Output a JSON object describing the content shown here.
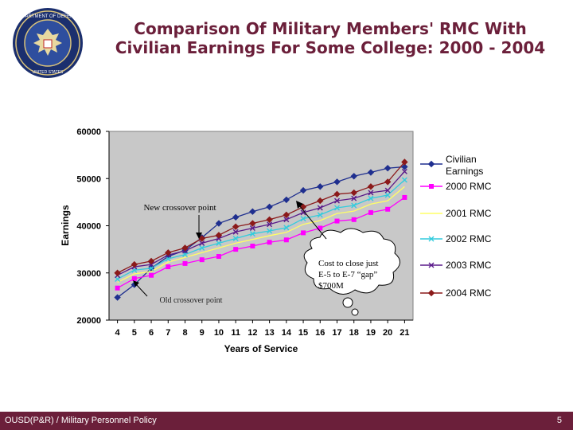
{
  "slide": {
    "title_line1": "Comparison Of Military Members' RMC With",
    "title_line2": "Civilian Earnings For Some College: 2000 - 2004",
    "footer_left": "OUSD(P&R) / Military Personnel Policy",
    "page_number": "5",
    "seal_lettering": "DEPARTMENT OF DEFENSE · UNITED STATES OF AMERICA"
  },
  "colors": {
    "title": "#6b1f3a",
    "footer_bg": "#6b1f3a",
    "plot_bg": "#c8c8c8",
    "civilian": "#1f2f8f",
    "rmc2000": "#ff00ff",
    "rmc2001": "#ffff66",
    "rmc2002": "#33ccdd",
    "rmc2003": "#5a1a8a",
    "rmc2004": "#8b1a1a"
  },
  "chart_data": {
    "type": "line",
    "title": "",
    "xlabel": "Years of Service",
    "ylabel": "Earnings",
    "x": [
      4,
      5,
      6,
      7,
      8,
      9,
      10,
      11,
      12,
      13,
      14,
      15,
      16,
      17,
      18,
      19,
      20,
      21
    ],
    "ylim": [
      20000,
      60000
    ],
    "yticks": [
      20000,
      30000,
      40000,
      50000,
      60000
    ],
    "ytick_labels": [
      "20000",
      "30000",
      "40000",
      "50000",
      "60000"
    ],
    "series": [
      {
        "name": "Civilian Earnings",
        "key": "civilian",
        "marker": "diamond",
        "values": [
          24800,
          27500,
          31000,
          33500,
          34800,
          37500,
          40500,
          41800,
          43000,
          44000,
          45500,
          47500,
          48300,
          49300,
          50500,
          51300,
          52200,
          52500
        ]
      },
      {
        "name": "2000 RMC",
        "key": "rmc2000",
        "marker": "square",
        "values": [
          26800,
          28800,
          29500,
          31300,
          32000,
          32800,
          33500,
          35000,
          35700,
          36500,
          37000,
          38500,
          39500,
          41000,
          41300,
          42800,
          43500,
          46000
        ]
      },
      {
        "name": "2001 RMC",
        "key": "rmc2001",
        "marker": "none",
        "values": [
          28000,
          29800,
          30300,
          32300,
          33300,
          34300,
          35300,
          36300,
          37100,
          37900,
          38600,
          40300,
          41100,
          42600,
          43100,
          44600,
          45300,
          48300
        ]
      },
      {
        "name": "2002 RMC",
        "key": "rmc2002",
        "marker": "x",
        "values": [
          28700,
          30600,
          31000,
          33000,
          33900,
          35300,
          36300,
          37300,
          38300,
          38900,
          39600,
          41500,
          42300,
          43800,
          44300,
          45800,
          46500,
          49700
        ]
      },
      {
        "name": "2003 RMC",
        "key": "rmc2003",
        "marker": "x",
        "values": [
          29500,
          31300,
          31800,
          33800,
          34700,
          36300,
          37300,
          38700,
          39500,
          40300,
          41300,
          42800,
          43800,
          45300,
          45800,
          47000,
          47500,
          51500
        ]
      },
      {
        "name": "2004 RMC",
        "key": "rmc2004",
        "marker": "diamond",
        "values": [
          30000,
          31800,
          32500,
          34300,
          35300,
          37300,
          38000,
          39800,
          40500,
          41300,
          42300,
          44000,
          45300,
          46700,
          47000,
          48300,
          49300,
          53500
        ]
      }
    ],
    "annotations": {
      "new_crossover": "New crossover point",
      "old_crossover": "Old crossover point",
      "callout_line1": "Cost to close just",
      "callout_line2": "E-5 to E-7 “gap”",
      "callout_line3": "$700M"
    },
    "legend_placement": "right"
  }
}
